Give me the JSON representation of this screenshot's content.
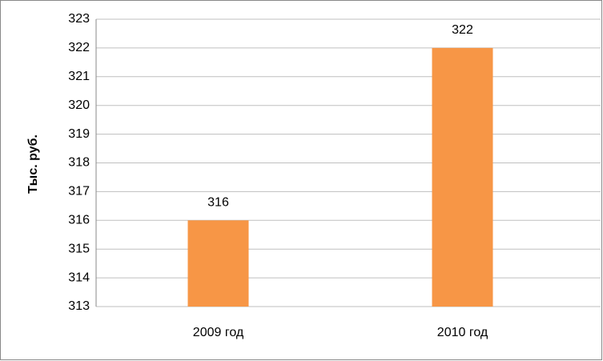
{
  "chart_data": {
    "type": "bar",
    "y_label": "Тыс. руб.",
    "categories": [
      "2009 год",
      "2010 год"
    ],
    "values": [
      316,
      322
    ],
    "color": "#f79646",
    "ylim": [
      313,
      323
    ],
    "yticks": [
      313,
      314,
      315,
      316,
      317,
      318,
      319,
      320,
      321,
      322,
      323
    ],
    "grid": true
  }
}
